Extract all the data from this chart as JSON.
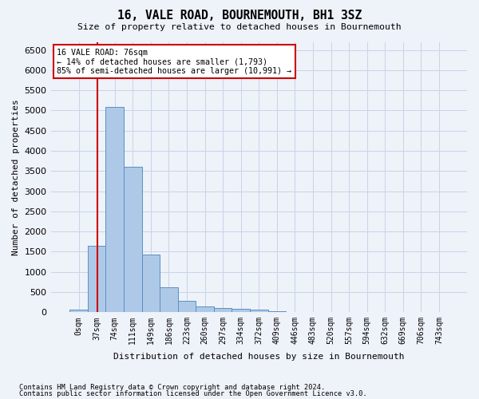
{
  "title": "16, VALE ROAD, BOURNEMOUTH, BH1 3SZ",
  "subtitle": "Size of property relative to detached houses in Bournemouth",
  "xlabel": "Distribution of detached houses by size in Bournemouth",
  "ylabel": "Number of detached properties",
  "footer_line1": "Contains HM Land Registry data © Crown copyright and database right 2024.",
  "footer_line2": "Contains public sector information licensed under the Open Government Licence v3.0.",
  "bar_values": [
    70,
    1650,
    5080,
    3600,
    1420,
    620,
    290,
    145,
    105,
    75,
    55,
    30,
    5,
    0,
    0,
    0,
    0,
    0,
    0,
    0,
    0
  ],
  "bar_labels": [
    "0sqm",
    "37sqm",
    "74sqm",
    "111sqm",
    "149sqm",
    "186sqm",
    "223sqm",
    "260sqm",
    "297sqm",
    "334sqm",
    "372sqm",
    "409sqm",
    "446sqm",
    "483sqm",
    "520sqm",
    "557sqm",
    "594sqm",
    "632sqm",
    "669sqm",
    "706sqm",
    "743sqm"
  ],
  "bar_color": "#aec9e8",
  "bar_edge_color": "#5a8fc2",
  "annotation_line0": "16 VALE ROAD: 76sqm",
  "annotation_line1": "← 14% of detached houses are smaller (1,793)",
  "annotation_line2": "85% of semi-detached houses are larger (10,991) →",
  "vline_color": "#cc0000",
  "vline_x_index": 1.06,
  "ylim_max": 6700,
  "yticks": [
    0,
    500,
    1000,
    1500,
    2000,
    2500,
    3000,
    3500,
    4000,
    4500,
    5000,
    5500,
    6000,
    6500
  ],
  "grid_color": "#c8d4e8",
  "background_color": "#eef2f9"
}
